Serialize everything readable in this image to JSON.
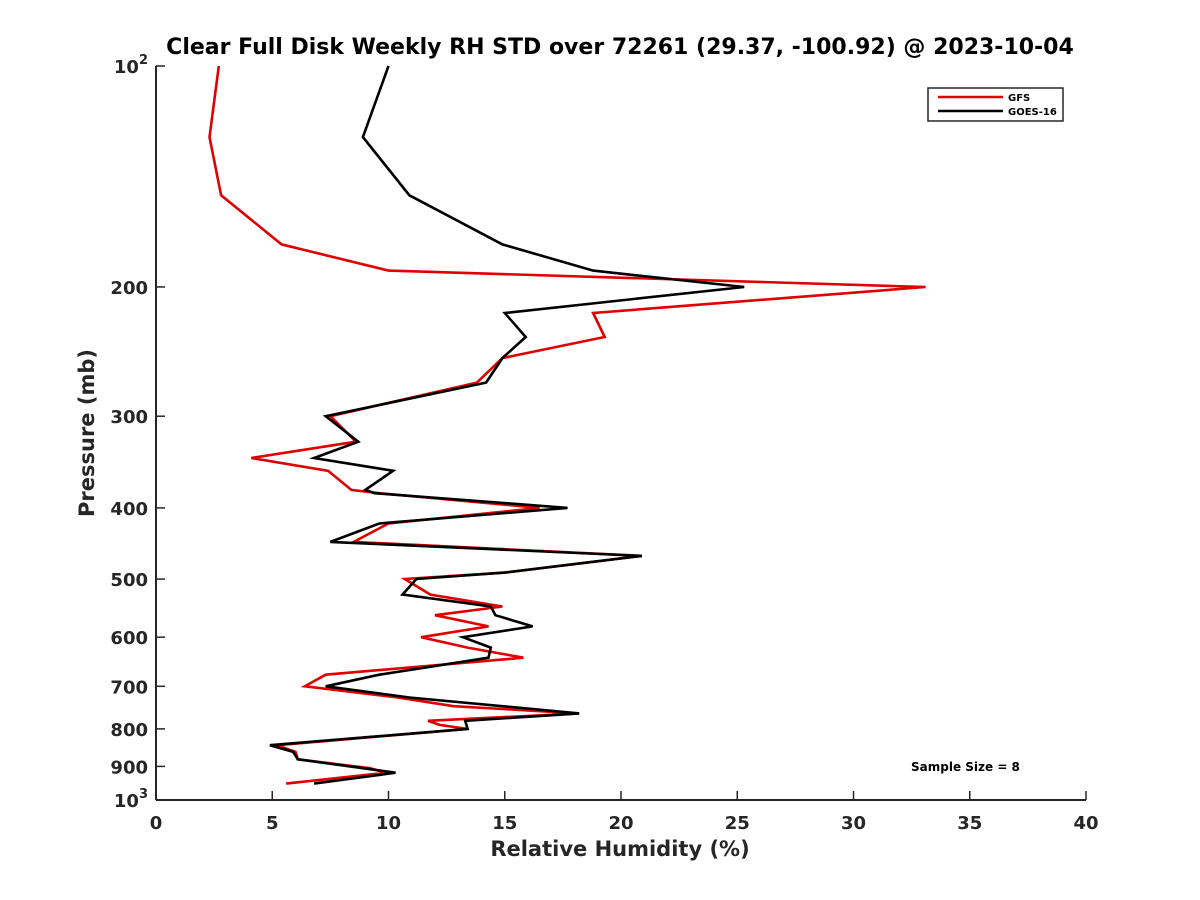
{
  "chart_data": {
    "type": "line",
    "title": "Clear Full Disk Weekly RH STD over 72261 (29.37, -100.92) @ 2023-10-04",
    "xlabel": "Relative Humidity (%)",
    "ylabel": "Pressure (mb)",
    "xlim": [
      0,
      40
    ],
    "ylim": [
      100,
      1000
    ],
    "y_scale": "log",
    "y_reversed": true,
    "x_ticks": [
      "0",
      "5",
      "10",
      "15",
      "20",
      "25",
      "30",
      "35",
      "40"
    ],
    "y_ticks": [
      {
        "value": 100,
        "label": "10",
        "sup": "2"
      },
      {
        "value": 200,
        "label": "200",
        "sup": ""
      },
      {
        "value": 300,
        "label": "300",
        "sup": ""
      },
      {
        "value": 400,
        "label": "400",
        "sup": ""
      },
      {
        "value": 500,
        "label": "500",
        "sup": ""
      },
      {
        "value": 600,
        "label": "600",
        "sup": ""
      },
      {
        "value": 700,
        "label": "700",
        "sup": ""
      },
      {
        "value": 800,
        "label": "800",
        "sup": ""
      },
      {
        "value": 900,
        "label": "900",
        "sup": ""
      },
      {
        "value": 1000,
        "label": "10",
        "sup": "3"
      }
    ],
    "grid": false,
    "legend_position": "top-right",
    "series": [
      {
        "name": "GFS",
        "color": "#e00000",
        "points": [
          [
            2.7,
            100
          ],
          [
            2.3,
            125
          ],
          [
            2.8,
            150
          ],
          [
            5.4,
            175
          ],
          [
            10.0,
            190
          ],
          [
            33.1,
            200
          ],
          [
            18.8,
            217
          ],
          [
            19.3,
            234
          ],
          [
            14.9,
            250
          ],
          [
            13.8,
            270
          ],
          [
            7.5,
            300
          ],
          [
            8.6,
            325
          ],
          [
            4.1,
            342
          ],
          [
            7.4,
            356
          ],
          [
            8.4,
            378
          ],
          [
            9.6,
            382
          ],
          [
            16.5,
            400
          ],
          [
            10.0,
            420
          ],
          [
            8.5,
            445
          ],
          [
            20.9,
            465
          ],
          [
            15.0,
            490
          ],
          [
            10.7,
            500
          ],
          [
            11.8,
            525
          ],
          [
            14.9,
            545
          ],
          [
            12.0,
            560
          ],
          [
            14.3,
            580
          ],
          [
            11.4,
            600
          ],
          [
            13.4,
            620
          ],
          [
            15.8,
            640
          ],
          [
            7.3,
            675
          ],
          [
            6.4,
            700
          ],
          [
            10.4,
            725
          ],
          [
            12.8,
            745
          ],
          [
            18.2,
            762
          ],
          [
            11.7,
            780
          ],
          [
            12.2,
            790
          ],
          [
            13.4,
            800
          ],
          [
            5.2,
            842
          ],
          [
            6.0,
            860
          ],
          [
            6.1,
            880
          ],
          [
            9.2,
            905
          ],
          [
            9.9,
            918
          ],
          [
            5.6,
            950
          ]
        ]
      },
      {
        "name": "GOES-16",
        "color": "#000000",
        "points": [
          [
            10.0,
            100
          ],
          [
            8.9,
            125
          ],
          [
            10.9,
            150
          ],
          [
            14.9,
            175
          ],
          [
            18.8,
            190
          ],
          [
            25.3,
            200
          ],
          [
            15.0,
            217
          ],
          [
            15.9,
            234
          ],
          [
            14.9,
            250
          ],
          [
            14.2,
            270
          ],
          [
            7.3,
            300
          ],
          [
            8.7,
            325
          ],
          [
            6.8,
            342
          ],
          [
            10.2,
            356
          ],
          [
            9.0,
            378
          ],
          [
            9.4,
            382
          ],
          [
            17.7,
            400
          ],
          [
            9.6,
            420
          ],
          [
            7.5,
            445
          ],
          [
            20.9,
            465
          ],
          [
            15.0,
            490
          ],
          [
            11.2,
            500
          ],
          [
            10.6,
            525
          ],
          [
            14.4,
            545
          ],
          [
            14.6,
            560
          ],
          [
            16.2,
            580
          ],
          [
            13.2,
            600
          ],
          [
            14.4,
            620
          ],
          [
            14.3,
            640
          ],
          [
            9.6,
            675
          ],
          [
            7.3,
            700
          ],
          [
            10.9,
            725
          ],
          [
            18.2,
            762
          ],
          [
            13.3,
            780
          ],
          [
            13.4,
            800
          ],
          [
            4.9,
            842
          ],
          [
            5.9,
            860
          ],
          [
            6.1,
            880
          ],
          [
            8.9,
            905
          ],
          [
            10.3,
            918
          ],
          [
            6.8,
            950
          ]
        ]
      }
    ],
    "annotation": "Sample Size = 8"
  }
}
